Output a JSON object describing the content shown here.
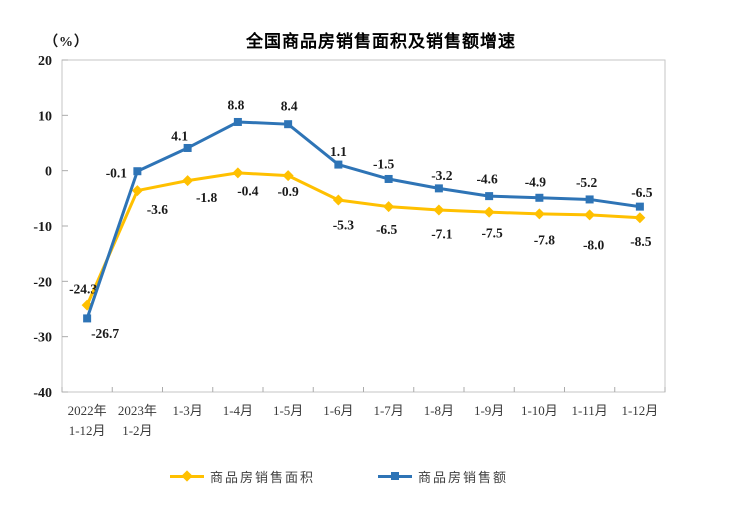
{
  "page": {
    "background": "#FFFFFF"
  },
  "chart_data": {
    "type": "line",
    "title": "全国商品房销售面积及销售额增速",
    "ylabel": "（%）",
    "ylim": [
      -40,
      20
    ],
    "yticks": [
      20,
      10,
      0,
      -10,
      -20,
      -30,
      -40
    ],
    "grid": false,
    "legend_position": "bottom",
    "categories": [
      [
        "2022年",
        "1-12月"
      ],
      [
        "2023年",
        "1-2月"
      ],
      [
        "1-3月"
      ],
      [
        "1-4月"
      ],
      [
        "1-5月"
      ],
      [
        "1-6月"
      ],
      [
        "1-7月"
      ],
      [
        "1-8月"
      ],
      [
        "1-9月"
      ],
      [
        "1-10月"
      ],
      [
        "1-11月"
      ],
      [
        "1-12月"
      ]
    ],
    "series": [
      {
        "name": "商品房销售面积",
        "color": "#FFC000",
        "marker": "diamond",
        "values": [
          -24.3,
          -3.6,
          -1.8,
          -0.4,
          -0.9,
          -5.3,
          -6.5,
          -7.1,
          -7.5,
          -7.8,
          -8.0,
          -8.5
        ]
      },
      {
        "name": "商品房销售额",
        "color": "#2E74B6",
        "marker": "square",
        "values": [
          -26.7,
          -0.1,
          4.1,
          8.8,
          8.4,
          1.1,
          -1.5,
          -3.2,
          -4.6,
          -4.9,
          -5.2,
          -6.5
        ]
      }
    ]
  }
}
